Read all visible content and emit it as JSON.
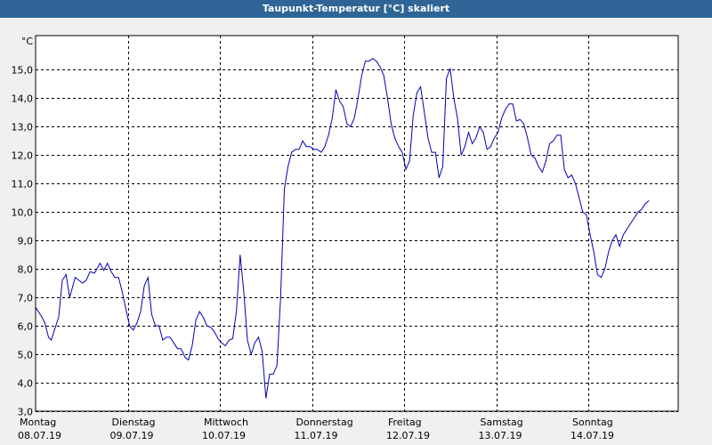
{
  "window": {
    "title": "Taupunkt-Temperatur [°C] skaliert"
  },
  "colors": {
    "title_bar": "#2f6596",
    "series_line": "#0000b4",
    "grid": "#000000",
    "plot_bg": "#ffffff"
  },
  "chart_data": {
    "type": "line",
    "title": "Taupunkt-Temperatur [°C] skaliert",
    "ylabel": "°C",
    "xlabel": "",
    "ylim": [
      3.0,
      16.2
    ],
    "xlim": [
      0,
      7
    ],
    "grid": true,
    "y_ticks": [
      "3,0",
      "4,0",
      "5,0",
      "6,0",
      "7,0",
      "8,0",
      "9,0",
      "10,0",
      "11,0",
      "12,0",
      "13,0",
      "14,0",
      "15,0"
    ],
    "x_ticks": [
      {
        "day": "Montag",
        "date": "08.07.19"
      },
      {
        "day": "Dienstag",
        "date": "09.07.19"
      },
      {
        "day": "Mittwoch",
        "date": "10.07.19"
      },
      {
        "day": "Donnerstag",
        "date": "11.07.19"
      },
      {
        "day": "Freitag",
        "date": "12.07.19"
      },
      {
        "day": "Samstag",
        "date": "13.07.19"
      },
      {
        "day": "Sonntag",
        "date": "14.07.19"
      }
    ],
    "series": [
      {
        "x_unit": "days since Montag 08.07.19 00:00",
        "points": [
          [
            0.0,
            6.65
          ],
          [
            0.07,
            6.3
          ],
          [
            0.1,
            6.1
          ],
          [
            0.14,
            5.6
          ],
          [
            0.17,
            5.5
          ],
          [
            0.21,
            5.9
          ],
          [
            0.25,
            6.3
          ],
          [
            0.29,
            7.6
          ],
          [
            0.33,
            7.8
          ],
          [
            0.37,
            7.0
          ],
          [
            0.43,
            7.7
          ],
          [
            0.47,
            7.6
          ],
          [
            0.51,
            7.5
          ],
          [
            0.55,
            7.6
          ],
          [
            0.59,
            7.9
          ],
          [
            0.64,
            7.85
          ],
          [
            0.7,
            8.2
          ],
          [
            0.74,
            7.95
          ],
          [
            0.78,
            8.2
          ],
          [
            0.82,
            7.9
          ],
          [
            0.86,
            7.7
          ],
          [
            0.9,
            7.7
          ],
          [
            0.94,
            7.2
          ],
          [
            0.98,
            6.6
          ],
          [
            1.02,
            6.0
          ],
          [
            1.06,
            5.85
          ],
          [
            1.1,
            6.1
          ],
          [
            1.14,
            6.5
          ],
          [
            1.18,
            7.4
          ],
          [
            1.22,
            7.7
          ],
          [
            1.26,
            6.4
          ],
          [
            1.3,
            6.0
          ],
          [
            1.34,
            6.0
          ],
          [
            1.38,
            5.5
          ],
          [
            1.42,
            5.6
          ],
          [
            1.46,
            5.6
          ],
          [
            1.5,
            5.4
          ],
          [
            1.54,
            5.2
          ],
          [
            1.58,
            5.2
          ],
          [
            1.62,
            4.9
          ],
          [
            1.66,
            4.8
          ],
          [
            1.7,
            5.3
          ],
          [
            1.74,
            6.2
          ],
          [
            1.78,
            6.5
          ],
          [
            1.82,
            6.3
          ],
          [
            1.86,
            6.0
          ],
          [
            1.9,
            5.95
          ],
          [
            1.94,
            5.8
          ],
          [
            1.98,
            5.55
          ],
          [
            2.02,
            5.4
          ],
          [
            2.06,
            5.3
          ],
          [
            2.1,
            5.5
          ],
          [
            2.14,
            5.55
          ],
          [
            2.18,
            6.5
          ],
          [
            2.22,
            8.5
          ],
          [
            2.26,
            7.2
          ],
          [
            2.3,
            5.5
          ],
          [
            2.34,
            5.0
          ],
          [
            2.38,
            5.4
          ],
          [
            2.42,
            5.6
          ],
          [
            2.46,
            5.1
          ],
          [
            2.5,
            3.45
          ],
          [
            2.54,
            4.3
          ],
          [
            2.58,
            4.3
          ],
          [
            2.62,
            4.6
          ],
          [
            2.66,
            7.0
          ],
          [
            2.7,
            10.8
          ],
          [
            2.74,
            11.6
          ],
          [
            2.78,
            12.1
          ],
          [
            2.82,
            12.2
          ],
          [
            2.86,
            12.2
          ],
          [
            2.9,
            12.5
          ],
          [
            2.94,
            12.3
          ],
          [
            2.98,
            12.3
          ],
          [
            3.02,
            12.2
          ],
          [
            3.06,
            12.2
          ],
          [
            3.1,
            12.1
          ],
          [
            3.14,
            12.3
          ],
          [
            3.18,
            12.7
          ],
          [
            3.22,
            13.3
          ],
          [
            3.26,
            14.3
          ],
          [
            3.3,
            13.9
          ],
          [
            3.34,
            13.7
          ],
          [
            3.38,
            13.1
          ],
          [
            3.42,
            13.0
          ],
          [
            3.46,
            13.3
          ],
          [
            3.5,
            14.0
          ],
          [
            3.54,
            14.8
          ],
          [
            3.58,
            15.3
          ],
          [
            3.62,
            15.3
          ],
          [
            3.66,
            15.4
          ],
          [
            3.7,
            15.3
          ],
          [
            3.74,
            15.1
          ],
          [
            3.78,
            14.8
          ],
          [
            3.82,
            14.0
          ],
          [
            3.86,
            13.1
          ],
          [
            3.9,
            12.6
          ],
          [
            3.94,
            12.3
          ],
          [
            3.98,
            12.1
          ],
          [
            4.02,
            11.5
          ],
          [
            4.06,
            11.8
          ],
          [
            4.1,
            13.4
          ],
          [
            4.14,
            14.2
          ],
          [
            4.18,
            14.4
          ],
          [
            4.22,
            13.5
          ],
          [
            4.26,
            12.6
          ],
          [
            4.3,
            12.1
          ],
          [
            4.34,
            12.1
          ],
          [
            4.38,
            11.2
          ],
          [
            4.42,
            11.6
          ],
          [
            4.46,
            14.7
          ],
          [
            4.5,
            15.05
          ],
          [
            4.54,
            14.0
          ],
          [
            4.58,
            13.3
          ],
          [
            4.62,
            12.0
          ],
          [
            4.66,
            12.3
          ],
          [
            4.7,
            12.8
          ],
          [
            4.74,
            12.4
          ],
          [
            4.78,
            12.6
          ],
          [
            4.82,
            13.0
          ],
          [
            4.86,
            12.8
          ],
          [
            4.9,
            12.2
          ],
          [
            4.94,
            12.3
          ],
          [
            4.98,
            12.6
          ],
          [
            5.02,
            12.8
          ],
          [
            5.06,
            13.3
          ],
          [
            5.1,
            13.6
          ],
          [
            5.14,
            13.8
          ],
          [
            5.18,
            13.8
          ],
          [
            5.22,
            13.2
          ],
          [
            5.26,
            13.25
          ],
          [
            5.3,
            13.1
          ],
          [
            5.34,
            12.6
          ],
          [
            5.38,
            12.0
          ],
          [
            5.42,
            11.9
          ],
          [
            5.46,
            11.6
          ],
          [
            5.5,
            11.4
          ],
          [
            5.54,
            11.8
          ],
          [
            5.58,
            12.4
          ],
          [
            5.62,
            12.5
          ],
          [
            5.66,
            12.7
          ],
          [
            5.7,
            12.7
          ],
          [
            5.74,
            11.5
          ],
          [
            5.78,
            11.2
          ],
          [
            5.82,
            11.3
          ],
          [
            5.86,
            11.0
          ],
          [
            5.9,
            10.5
          ],
          [
            5.94,
            10.0
          ],
          [
            5.98,
            9.9
          ],
          [
            6.02,
            9.2
          ],
          [
            6.06,
            8.6
          ],
          [
            6.1,
            7.8
          ],
          [
            6.14,
            7.7
          ],
          [
            6.18,
            8.0
          ],
          [
            6.22,
            8.6
          ],
          [
            6.26,
            9.0
          ],
          [
            6.3,
            9.2
          ],
          [
            6.34,
            8.8
          ],
          [
            6.38,
            9.2
          ],
          [
            6.42,
            9.4
          ],
          [
            6.46,
            9.6
          ],
          [
            6.5,
            9.8
          ],
          [
            6.54,
            10.0
          ],
          [
            6.58,
            10.1
          ],
          [
            6.62,
            10.3
          ],
          [
            6.66,
            10.4
          ]
        ]
      }
    ]
  }
}
